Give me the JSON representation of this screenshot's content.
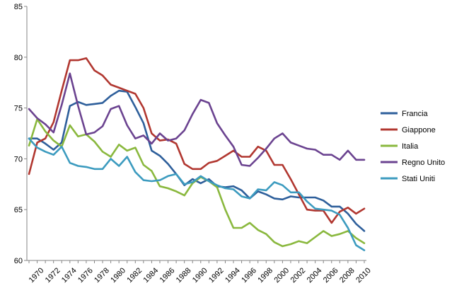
{
  "chart_data": {
    "type": "line",
    "title": "",
    "xlabel": "",
    "ylabel": "",
    "ylim": [
      60,
      85
    ],
    "yticks": [
      60,
      65,
      70,
      75,
      80,
      85
    ],
    "xlim": [
      1970,
      2011
    ],
    "xticks": [
      1970,
      1972,
      1974,
      1976,
      1978,
      1980,
      1982,
      1984,
      1986,
      1988,
      1990,
      1992,
      1994,
      1996,
      1998,
      2000,
      2002,
      2004,
      2006,
      2008,
      2010
    ],
    "grid": false,
    "legend_position": "right",
    "x": [
      1970,
      1971,
      1972,
      1973,
      1974,
      1975,
      1976,
      1977,
      1978,
      1979,
      1980,
      1981,
      1982,
      1983,
      1984,
      1985,
      1986,
      1987,
      1988,
      1989,
      1990,
      1991,
      1992,
      1993,
      1994,
      1995,
      1996,
      1997,
      1998,
      1999,
      2000,
      2001,
      2002,
      2003,
      2004,
      2005,
      2006,
      2007,
      2008,
      2009,
      2010,
      2011
    ],
    "series": [
      {
        "name": "Francia",
        "color": "#2E5F9B",
        "values": [
          72.0,
          72.0,
          71.5,
          70.9,
          71.6,
          75.2,
          75.6,
          75.3,
          75.4,
          75.5,
          76.2,
          76.7,
          76.6,
          75.1,
          73.5,
          70.8,
          70.3,
          69.5,
          68.5,
          67.4,
          68.0,
          67.6,
          68.0,
          67.3,
          67.2,
          67.3,
          66.9,
          66.1,
          66.8,
          66.5,
          66.1,
          66.0,
          66.3,
          66.2,
          66.2,
          66.2,
          65.9,
          65.3,
          65.3,
          64.6,
          63.6,
          62.9
        ]
      },
      {
        "name": "Giappone",
        "color": "#B13730",
        "values": [
          68.5,
          71.6,
          72.0,
          73.6,
          76.7,
          79.7,
          79.7,
          79.9,
          78.7,
          78.2,
          77.3,
          77.0,
          76.7,
          76.4,
          75.0,
          72.5,
          71.8,
          71.9,
          71.5,
          69.5,
          69.0,
          69.0,
          69.6,
          69.8,
          70.3,
          70.8,
          70.2,
          70.2,
          71.2,
          70.8,
          69.4,
          69.4,
          68.0,
          66.5,
          65.0,
          64.9,
          64.9,
          63.7,
          64.8,
          65.2,
          64.6,
          65.1
        ]
      },
      {
        "name": "Italia",
        "color": "#8AB83E",
        "values": [
          71.3,
          73.9,
          72.7,
          71.8,
          71.2,
          73.3,
          72.2,
          72.4,
          71.7,
          70.7,
          70.2,
          71.4,
          70.8,
          71.1,
          69.4,
          68.8,
          67.3,
          67.1,
          66.8,
          66.4,
          67.6,
          68.2,
          67.8,
          67.2,
          65.0,
          63.2,
          63.2,
          63.7,
          63.0,
          62.6,
          61.8,
          61.4,
          61.6,
          61.9,
          61.7,
          62.3,
          62.9,
          62.4,
          62.6,
          62.9,
          62.2,
          61.7
        ]
      },
      {
        "name": "Regno Unito",
        "color": "#6B4390",
        "values": [
          74.9,
          74.0,
          73.4,
          72.6,
          75.3,
          78.4,
          75.2,
          72.4,
          72.6,
          73.2,
          74.9,
          75.2,
          73.3,
          72.0,
          72.3,
          71.5,
          72.5,
          71.8,
          72.0,
          72.8,
          74.4,
          75.8,
          75.5,
          73.5,
          72.3,
          71.2,
          69.4,
          69.3,
          70.1,
          71.0,
          72.0,
          72.5,
          71.6,
          71.3,
          71.0,
          70.9,
          70.4,
          70.4,
          69.9,
          70.8,
          69.9,
          69.9
        ]
      },
      {
        "name": "Stati Uniti",
        "color": "#3C9BBF",
        "values": [
          72.0,
          71.1,
          70.7,
          70.4,
          71.2,
          69.6,
          69.3,
          69.2,
          69.0,
          69.0,
          70.0,
          69.3,
          70.2,
          68.7,
          67.9,
          67.8,
          67.9,
          68.3,
          68.5,
          67.5,
          67.7,
          68.3,
          67.8,
          67.4,
          67.1,
          67.0,
          66.3,
          66.1,
          67.0,
          66.9,
          67.7,
          67.4,
          66.7,
          66.7,
          65.8,
          65.1,
          65.0,
          64.9,
          64.5,
          63.2,
          61.5,
          61.0
        ]
      }
    ]
  }
}
